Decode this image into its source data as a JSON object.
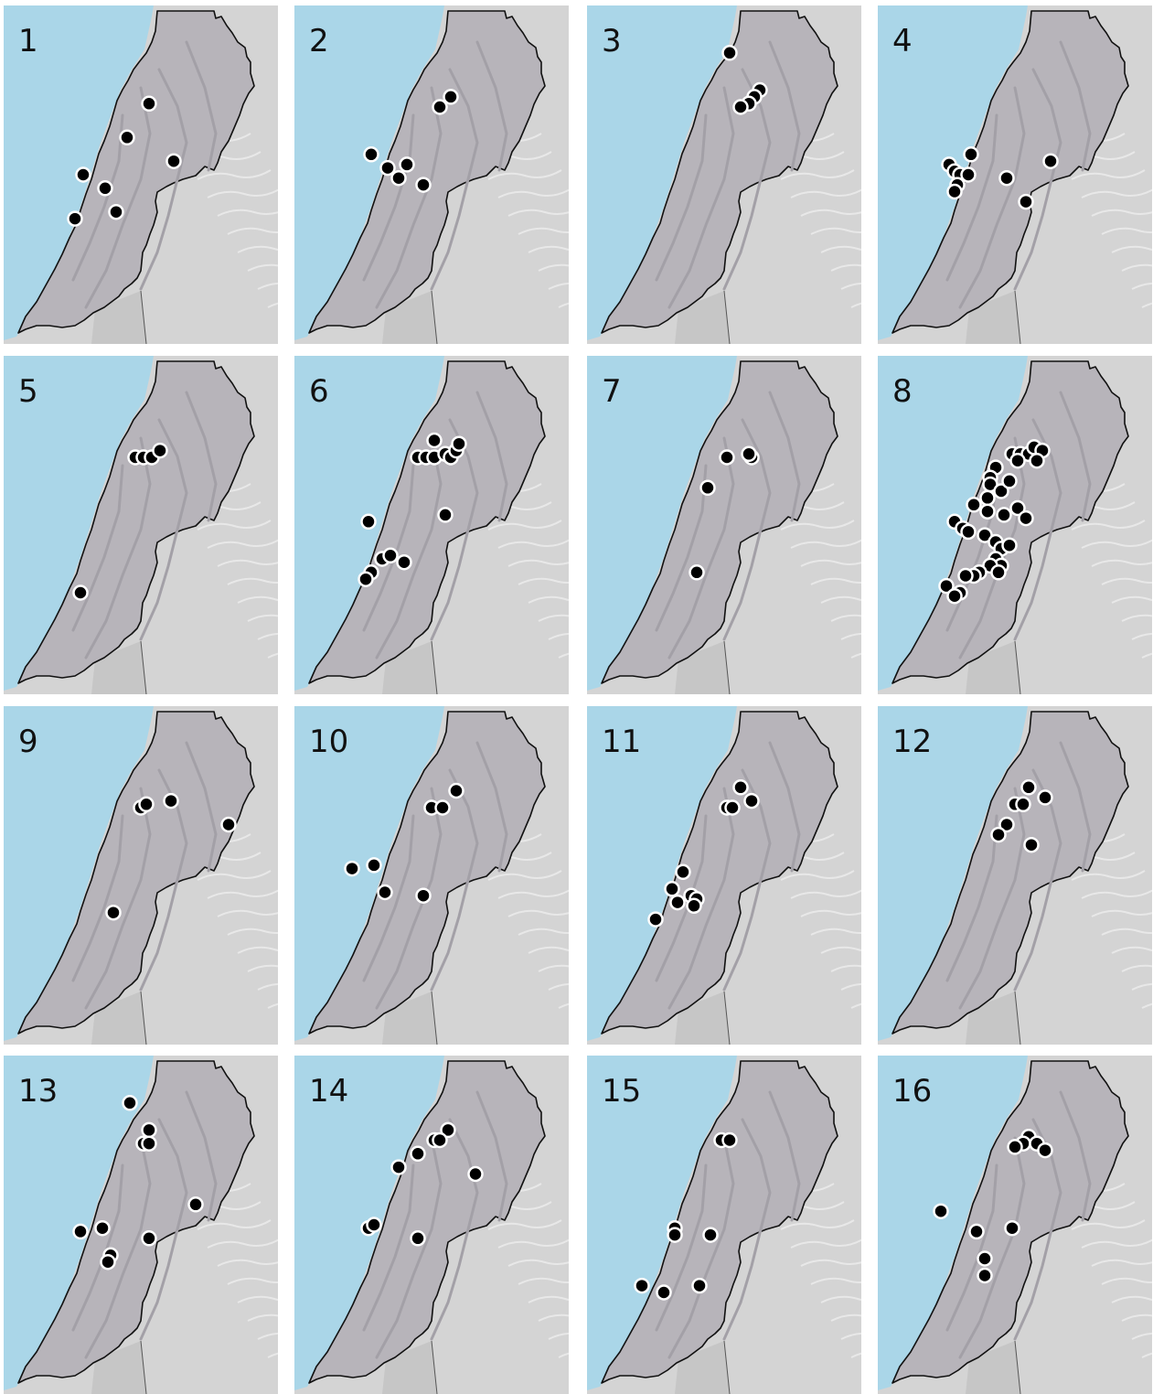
{
  "colors": {
    "sea": "#aad6e8",
    "land_outside": "#d4d4d4",
    "country_fill": "#b7b4ba",
    "border": "#111111",
    "point_fill": "#000000",
    "point_stroke": "#ffffff"
  },
  "panels": [
    {
      "label": "1",
      "points": [
        [
          0.53,
          0.29
        ],
        [
          0.45,
          0.39
        ],
        [
          0.62,
          0.46
        ],
        [
          0.29,
          0.5
        ],
        [
          0.37,
          0.54
        ],
        [
          0.41,
          0.61
        ],
        [
          0.26,
          0.63
        ]
      ]
    },
    {
      "label": "2",
      "points": [
        [
          0.57,
          0.27
        ],
        [
          0.53,
          0.3
        ],
        [
          0.28,
          0.44
        ],
        [
          0.34,
          0.48
        ],
        [
          0.38,
          0.51
        ],
        [
          0.41,
          0.47
        ],
        [
          0.47,
          0.53
        ]
      ]
    },
    {
      "label": "3",
      "points": [
        [
          0.52,
          0.14
        ],
        [
          0.63,
          0.25
        ],
        [
          0.61,
          0.27
        ],
        [
          0.59,
          0.29
        ],
        [
          0.56,
          0.3
        ]
      ]
    },
    {
      "label": "4",
      "points": [
        [
          0.34,
          0.44
        ],
        [
          0.26,
          0.47
        ],
        [
          0.28,
          0.49
        ],
        [
          0.3,
          0.5
        ],
        [
          0.33,
          0.5
        ],
        [
          0.29,
          0.53
        ],
        [
          0.28,
          0.55
        ],
        [
          0.63,
          0.46
        ],
        [
          0.47,
          0.51
        ],
        [
          0.54,
          0.58
        ]
      ]
    },
    {
      "label": "5",
      "points": [
        [
          0.48,
          0.3
        ],
        [
          0.51,
          0.3
        ],
        [
          0.54,
          0.3
        ],
        [
          0.57,
          0.28
        ],
        [
          0.28,
          0.7
        ]
      ]
    },
    {
      "label": "6",
      "points": [
        [
          0.45,
          0.3
        ],
        [
          0.48,
          0.3
        ],
        [
          0.51,
          0.3
        ],
        [
          0.51,
          0.25
        ],
        [
          0.55,
          0.29
        ],
        [
          0.57,
          0.3
        ],
        [
          0.59,
          0.28
        ],
        [
          0.6,
          0.26
        ],
        [
          0.27,
          0.49
        ],
        [
          0.55,
          0.47
        ],
        [
          0.28,
          0.64
        ],
        [
          0.26,
          0.66
        ],
        [
          0.32,
          0.6
        ],
        [
          0.35,
          0.59
        ],
        [
          0.4,
          0.61
        ]
      ]
    },
    {
      "label": "7",
      "points": [
        [
          0.51,
          0.3
        ],
        [
          0.6,
          0.3
        ],
        [
          0.59,
          0.29
        ],
        [
          0.44,
          0.39
        ],
        [
          0.4,
          0.64
        ]
      ]
    },
    {
      "label": "8",
      "points": [
        [
          0.49,
          0.29
        ],
        [
          0.52,
          0.29
        ],
        [
          0.55,
          0.29
        ],
        [
          0.57,
          0.27
        ],
        [
          0.6,
          0.28
        ],
        [
          0.58,
          0.31
        ],
        [
          0.51,
          0.31
        ],
        [
          0.43,
          0.33
        ],
        [
          0.41,
          0.36
        ],
        [
          0.41,
          0.38
        ],
        [
          0.45,
          0.4
        ],
        [
          0.48,
          0.37
        ],
        [
          0.4,
          0.42
        ],
        [
          0.35,
          0.44
        ],
        [
          0.4,
          0.46
        ],
        [
          0.46,
          0.47
        ],
        [
          0.51,
          0.45
        ],
        [
          0.54,
          0.48
        ],
        [
          0.28,
          0.49
        ],
        [
          0.31,
          0.51
        ],
        [
          0.33,
          0.52
        ],
        [
          0.39,
          0.53
        ],
        [
          0.43,
          0.55
        ],
        [
          0.45,
          0.57
        ],
        [
          0.48,
          0.56
        ],
        [
          0.43,
          0.6
        ],
        [
          0.45,
          0.62
        ],
        [
          0.41,
          0.62
        ],
        [
          0.44,
          0.64
        ],
        [
          0.37,
          0.64
        ],
        [
          0.35,
          0.65
        ],
        [
          0.32,
          0.65
        ],
        [
          0.25,
          0.68
        ],
        [
          0.3,
          0.7
        ],
        [
          0.28,
          0.71
        ]
      ]
    },
    {
      "label": "9",
      "points": [
        [
          0.5,
          0.3
        ],
        [
          0.52,
          0.29
        ],
        [
          0.61,
          0.28
        ],
        [
          0.82,
          0.35
        ],
        [
          0.4,
          0.61
        ]
      ]
    },
    {
      "label": "10",
      "points": [
        [
          0.5,
          0.3
        ],
        [
          0.54,
          0.3
        ],
        [
          0.59,
          0.25
        ],
        [
          0.21,
          0.48
        ],
        [
          0.29,
          0.47
        ],
        [
          0.33,
          0.55
        ],
        [
          0.47,
          0.56
        ]
      ]
    },
    {
      "label": "11",
      "points": [
        [
          0.56,
          0.24
        ],
        [
          0.51,
          0.3
        ],
        [
          0.53,
          0.3
        ],
        [
          0.6,
          0.28
        ],
        [
          0.35,
          0.49
        ],
        [
          0.31,
          0.54
        ],
        [
          0.38,
          0.56
        ],
        [
          0.4,
          0.57
        ],
        [
          0.33,
          0.58
        ],
        [
          0.39,
          0.59
        ],
        [
          0.25,
          0.63
        ]
      ]
    },
    {
      "label": "12",
      "points": [
        [
          0.55,
          0.24
        ],
        [
          0.5,
          0.29
        ],
        [
          0.53,
          0.29
        ],
        [
          0.61,
          0.27
        ],
        [
          0.47,
          0.35
        ],
        [
          0.44,
          0.38
        ],
        [
          0.56,
          0.41
        ]
      ]
    },
    {
      "label": "13",
      "points": [
        [
          0.46,
          0.14
        ],
        [
          0.53,
          0.22
        ],
        [
          0.51,
          0.26
        ],
        [
          0.53,
          0.26
        ],
        [
          0.7,
          0.44
        ],
        [
          0.28,
          0.52
        ],
        [
          0.36,
          0.51
        ],
        [
          0.53,
          0.54
        ],
        [
          0.39,
          0.59
        ],
        [
          0.38,
          0.61
        ]
      ]
    },
    {
      "label": "14",
      "points": [
        [
          0.56,
          0.22
        ],
        [
          0.51,
          0.25
        ],
        [
          0.53,
          0.25
        ],
        [
          0.45,
          0.29
        ],
        [
          0.38,
          0.33
        ],
        [
          0.66,
          0.35
        ],
        [
          0.27,
          0.51
        ],
        [
          0.29,
          0.5
        ],
        [
          0.45,
          0.54
        ]
      ]
    },
    {
      "label": "15",
      "points": [
        [
          0.49,
          0.25
        ],
        [
          0.52,
          0.25
        ],
        [
          0.32,
          0.51
        ],
        [
          0.32,
          0.53
        ],
        [
          0.45,
          0.53
        ],
        [
          0.2,
          0.68
        ],
        [
          0.28,
          0.7
        ],
        [
          0.41,
          0.68
        ]
      ]
    },
    {
      "label": "16",
      "points": [
        [
          0.55,
          0.24
        ],
        [
          0.53,
          0.26
        ],
        [
          0.58,
          0.26
        ],
        [
          0.5,
          0.27
        ],
        [
          0.61,
          0.28
        ],
        [
          0.23,
          0.46
        ],
        [
          0.36,
          0.52
        ],
        [
          0.49,
          0.51
        ],
        [
          0.39,
          0.6
        ],
        [
          0.39,
          0.65
        ]
      ]
    }
  ]
}
